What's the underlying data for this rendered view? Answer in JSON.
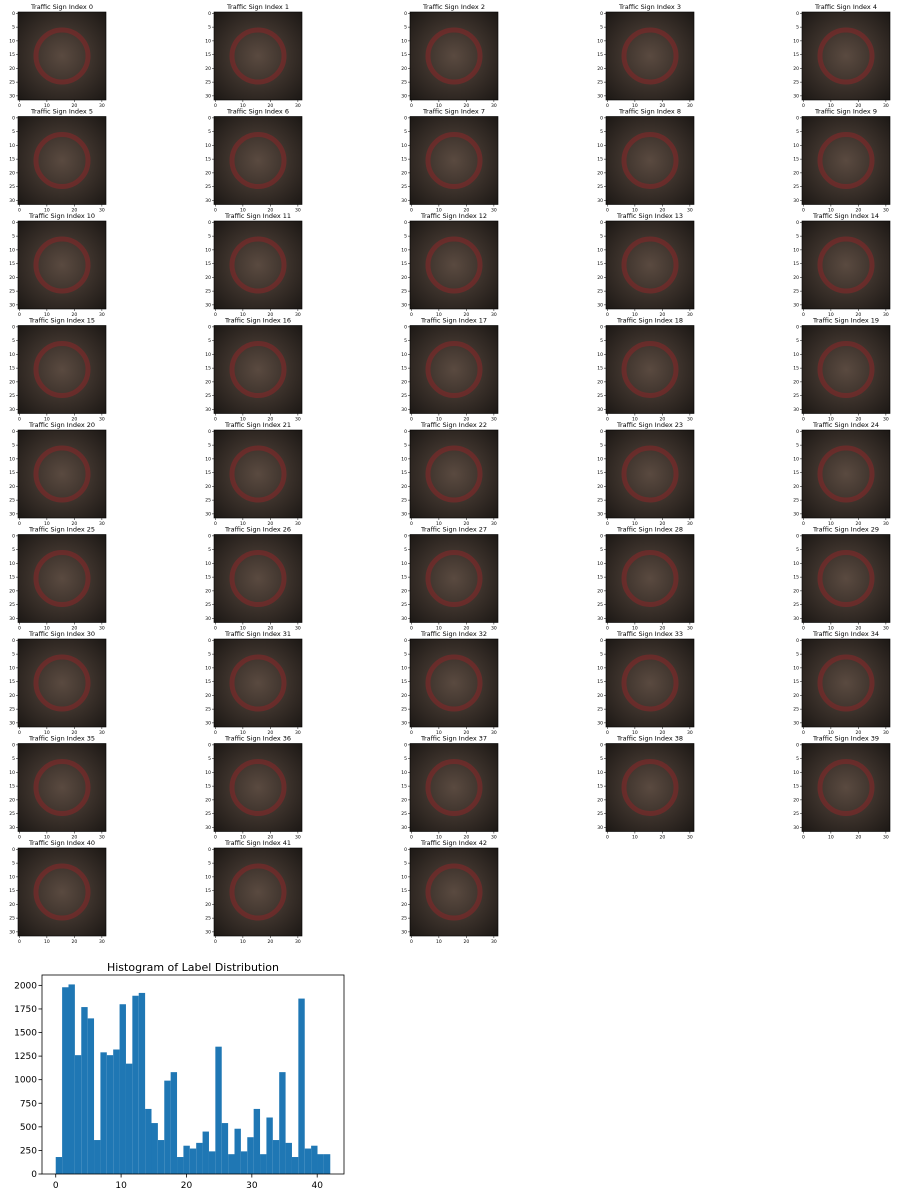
{
  "chart_data": [
    {
      "type": "image",
      "title": "Traffic Sign Index 0",
      "xlim": [
        -0.5,
        31.5
      ],
      "ylim": [
        31.5,
        -0.5
      ],
      "xticks": [
        0,
        10,
        20,
        30
      ],
      "yticks": [
        0,
        5,
        10,
        15,
        20,
        25,
        30
      ]
    },
    {
      "type": "image",
      "title": "Traffic Sign Index 1",
      "xlim": [
        -0.5,
        31.5
      ],
      "ylim": [
        31.5,
        -0.5
      ],
      "xticks": [
        0,
        10,
        20,
        30
      ],
      "yticks": [
        0,
        5,
        10,
        15,
        20,
        25,
        30
      ]
    },
    {
      "type": "image",
      "title": "Traffic Sign Index 2",
      "xlim": [
        -0.5,
        31.5
      ],
      "ylim": [
        31.5,
        -0.5
      ],
      "xticks": [
        0,
        10,
        20,
        30
      ],
      "yticks": [
        0,
        5,
        10,
        15,
        20,
        25,
        30
      ]
    },
    {
      "type": "image",
      "title": "Traffic Sign Index 3",
      "xlim": [
        -0.5,
        31.5
      ],
      "ylim": [
        31.5,
        -0.5
      ],
      "xticks": [
        0,
        10,
        20,
        30
      ],
      "yticks": [
        0,
        5,
        10,
        15,
        20,
        25,
        30
      ]
    },
    {
      "type": "image",
      "title": "Traffic Sign Index 4",
      "xlim": [
        -0.5,
        31.5
      ],
      "ylim": [
        31.5,
        -0.5
      ],
      "xticks": [
        0,
        10,
        20,
        30
      ],
      "yticks": [
        0,
        5,
        10,
        15,
        20,
        25,
        30
      ]
    },
    {
      "type": "image",
      "title": "Traffic Sign Index 5",
      "xlim": [
        -0.5,
        31.5
      ],
      "ylim": [
        31.5,
        -0.5
      ],
      "xticks": [
        0,
        10,
        20,
        30
      ],
      "yticks": [
        0,
        5,
        10,
        15,
        20,
        25,
        30
      ]
    },
    {
      "type": "image",
      "title": "Traffic Sign Index 6",
      "xlim": [
        -0.5,
        31.5
      ],
      "ylim": [
        31.5,
        -0.5
      ],
      "xticks": [
        0,
        10,
        20,
        30
      ],
      "yticks": [
        0,
        5,
        10,
        15,
        20,
        25,
        30
      ]
    },
    {
      "type": "image",
      "title": "Traffic Sign Index 7",
      "xlim": [
        -0.5,
        31.5
      ],
      "ylim": [
        31.5,
        -0.5
      ],
      "xticks": [
        0,
        10,
        20,
        30
      ],
      "yticks": [
        0,
        5,
        10,
        15,
        20,
        25,
        30
      ]
    },
    {
      "type": "image",
      "title": "Traffic Sign Index 8",
      "xlim": [
        -0.5,
        31.5
      ],
      "ylim": [
        31.5,
        -0.5
      ],
      "xticks": [
        0,
        10,
        20,
        30
      ],
      "yticks": [
        0,
        5,
        10,
        15,
        20,
        25,
        30
      ]
    },
    {
      "type": "image",
      "title": "Traffic Sign Index 9",
      "xlim": [
        -0.5,
        31.5
      ],
      "ylim": [
        31.5,
        -0.5
      ],
      "xticks": [
        0,
        10,
        20,
        30
      ],
      "yticks": [
        0,
        5,
        10,
        15,
        20,
        25,
        30
      ]
    },
    {
      "type": "image",
      "title": "Traffic Sign Index 10",
      "xlim": [
        -0.5,
        31.5
      ],
      "ylim": [
        31.5,
        -0.5
      ],
      "xticks": [
        0,
        10,
        20,
        30
      ],
      "yticks": [
        0,
        5,
        10,
        15,
        20,
        25,
        30
      ]
    },
    {
      "type": "image",
      "title": "Traffic Sign Index 11",
      "xlim": [
        -0.5,
        31.5
      ],
      "ylim": [
        31.5,
        -0.5
      ],
      "xticks": [
        0,
        10,
        20,
        30
      ],
      "yticks": [
        0,
        5,
        10,
        15,
        20,
        25,
        30
      ]
    },
    {
      "type": "image",
      "title": "Traffic Sign Index 12",
      "xlim": [
        -0.5,
        31.5
      ],
      "ylim": [
        31.5,
        -0.5
      ],
      "xticks": [
        0,
        10,
        20,
        30
      ],
      "yticks": [
        0,
        5,
        10,
        15,
        20,
        25,
        30
      ]
    },
    {
      "type": "image",
      "title": "Traffic Sign Index 13",
      "xlim": [
        -0.5,
        31.5
      ],
      "ylim": [
        31.5,
        -0.5
      ],
      "xticks": [
        0,
        10,
        20,
        30
      ],
      "yticks": [
        0,
        5,
        10,
        15,
        20,
        25,
        30
      ]
    },
    {
      "type": "image",
      "title": "Traffic Sign Index 14",
      "xlim": [
        -0.5,
        31.5
      ],
      "ylim": [
        31.5,
        -0.5
      ],
      "xticks": [
        0,
        10,
        20,
        30
      ],
      "yticks": [
        0,
        5,
        10,
        15,
        20,
        25,
        30
      ]
    },
    {
      "type": "image",
      "title": "Traffic Sign Index 15",
      "xlim": [
        -0.5,
        31.5
      ],
      "ylim": [
        31.5,
        -0.5
      ],
      "xticks": [
        0,
        10,
        20,
        30
      ],
      "yticks": [
        0,
        5,
        10,
        15,
        20,
        25,
        30
      ]
    },
    {
      "type": "image",
      "title": "Traffic Sign Index 16",
      "xlim": [
        -0.5,
        31.5
      ],
      "ylim": [
        31.5,
        -0.5
      ],
      "xticks": [
        0,
        10,
        20,
        30
      ],
      "yticks": [
        0,
        5,
        10,
        15,
        20,
        25,
        30
      ]
    },
    {
      "type": "image",
      "title": "Traffic Sign Index 17",
      "xlim": [
        -0.5,
        31.5
      ],
      "ylim": [
        31.5,
        -0.5
      ],
      "xticks": [
        0,
        10,
        20,
        30
      ],
      "yticks": [
        0,
        5,
        10,
        15,
        20,
        25,
        30
      ]
    },
    {
      "type": "image",
      "title": "Traffic Sign Index 18",
      "xlim": [
        -0.5,
        31.5
      ],
      "ylim": [
        31.5,
        -0.5
      ],
      "xticks": [
        0,
        10,
        20,
        30
      ],
      "yticks": [
        0,
        5,
        10,
        15,
        20,
        25,
        30
      ]
    },
    {
      "type": "image",
      "title": "Traffic Sign Index 19",
      "xlim": [
        -0.5,
        31.5
      ],
      "ylim": [
        31.5,
        -0.5
      ],
      "xticks": [
        0,
        10,
        20,
        30
      ],
      "yticks": [
        0,
        5,
        10,
        15,
        20,
        25,
        30
      ]
    },
    {
      "type": "image",
      "title": "Traffic Sign Index 20",
      "xlim": [
        -0.5,
        31.5
      ],
      "ylim": [
        31.5,
        -0.5
      ],
      "xticks": [
        0,
        10,
        20,
        30
      ],
      "yticks": [
        0,
        5,
        10,
        15,
        20,
        25,
        30
      ]
    },
    {
      "type": "image",
      "title": "Traffic Sign Index 21",
      "xlim": [
        -0.5,
        31.5
      ],
      "ylim": [
        31.5,
        -0.5
      ],
      "xticks": [
        0,
        10,
        20,
        30
      ],
      "yticks": [
        0,
        5,
        10,
        15,
        20,
        25,
        30
      ]
    },
    {
      "type": "image",
      "title": "Traffic Sign Index 22",
      "xlim": [
        -0.5,
        31.5
      ],
      "ylim": [
        31.5,
        -0.5
      ],
      "xticks": [
        0,
        10,
        20,
        30
      ],
      "yticks": [
        0,
        5,
        10,
        15,
        20,
        25,
        30
      ]
    },
    {
      "type": "image",
      "title": "Traffic Sign Index 23",
      "xlim": [
        -0.5,
        31.5
      ],
      "ylim": [
        31.5,
        -0.5
      ],
      "xticks": [
        0,
        10,
        20,
        30
      ],
      "yticks": [
        0,
        5,
        10,
        15,
        20,
        25,
        30
      ]
    },
    {
      "type": "image",
      "title": "Traffic Sign Index 24",
      "xlim": [
        -0.5,
        31.5
      ],
      "ylim": [
        31.5,
        -0.5
      ],
      "xticks": [
        0,
        10,
        20,
        30
      ],
      "yticks": [
        0,
        5,
        10,
        15,
        20,
        25,
        30
      ]
    },
    {
      "type": "image",
      "title": "Traffic Sign Index 25",
      "xlim": [
        -0.5,
        31.5
      ],
      "ylim": [
        31.5,
        -0.5
      ],
      "xticks": [
        0,
        10,
        20,
        30
      ],
      "yticks": [
        0,
        5,
        10,
        15,
        20,
        25,
        30
      ]
    },
    {
      "type": "image",
      "title": "Traffic Sign Index 26",
      "xlim": [
        -0.5,
        31.5
      ],
      "ylim": [
        31.5,
        -0.5
      ],
      "xticks": [
        0,
        10,
        20,
        30
      ],
      "yticks": [
        0,
        5,
        10,
        15,
        20,
        25,
        30
      ]
    },
    {
      "type": "image",
      "title": "Traffic Sign Index 27",
      "xlim": [
        -0.5,
        31.5
      ],
      "ylim": [
        31.5,
        -0.5
      ],
      "xticks": [
        0,
        10,
        20,
        30
      ],
      "yticks": [
        0,
        5,
        10,
        15,
        20,
        25,
        30
      ]
    },
    {
      "type": "image",
      "title": "Traffic Sign Index 28",
      "xlim": [
        -0.5,
        31.5
      ],
      "ylim": [
        31.5,
        -0.5
      ],
      "xticks": [
        0,
        10,
        20,
        30
      ],
      "yticks": [
        0,
        5,
        10,
        15,
        20,
        25,
        30
      ]
    },
    {
      "type": "image",
      "title": "Traffic Sign Index 29",
      "xlim": [
        -0.5,
        31.5
      ],
      "ylim": [
        31.5,
        -0.5
      ],
      "xticks": [
        0,
        10,
        20,
        30
      ],
      "yticks": [
        0,
        5,
        10,
        15,
        20,
        25,
        30
      ]
    },
    {
      "type": "image",
      "title": "Traffic Sign Index 30",
      "xlim": [
        -0.5,
        31.5
      ],
      "ylim": [
        31.5,
        -0.5
      ],
      "xticks": [
        0,
        10,
        20,
        30
      ],
      "yticks": [
        0,
        5,
        10,
        15,
        20,
        25,
        30
      ]
    },
    {
      "type": "image",
      "title": "Traffic Sign Index 31",
      "xlim": [
        -0.5,
        31.5
      ],
      "ylim": [
        31.5,
        -0.5
      ],
      "xticks": [
        0,
        10,
        20,
        30
      ],
      "yticks": [
        0,
        5,
        10,
        15,
        20,
        25,
        30
      ]
    },
    {
      "type": "image",
      "title": "Traffic Sign Index 32",
      "xlim": [
        -0.5,
        31.5
      ],
      "ylim": [
        31.5,
        -0.5
      ],
      "xticks": [
        0,
        10,
        20,
        30
      ],
      "yticks": [
        0,
        5,
        10,
        15,
        20,
        25,
        30
      ]
    },
    {
      "type": "image",
      "title": "Traffic Sign Index 33",
      "xlim": [
        -0.5,
        31.5
      ],
      "ylim": [
        31.5,
        -0.5
      ],
      "xticks": [
        0,
        10,
        20,
        30
      ],
      "yticks": [
        0,
        5,
        10,
        15,
        20,
        25,
        30
      ]
    },
    {
      "type": "image",
      "title": "Traffic Sign Index 34",
      "xlim": [
        -0.5,
        31.5
      ],
      "ylim": [
        31.5,
        -0.5
      ],
      "xticks": [
        0,
        10,
        20,
        30
      ],
      "yticks": [
        0,
        5,
        10,
        15,
        20,
        25,
        30
      ]
    },
    {
      "type": "image",
      "title": "Traffic Sign Index 35",
      "xlim": [
        -0.5,
        31.5
      ],
      "ylim": [
        31.5,
        -0.5
      ],
      "xticks": [
        0,
        10,
        20,
        30
      ],
      "yticks": [
        0,
        5,
        10,
        15,
        20,
        25,
        30
      ]
    },
    {
      "type": "image",
      "title": "Traffic Sign Index 36",
      "xlim": [
        -0.5,
        31.5
      ],
      "ylim": [
        31.5,
        -0.5
      ],
      "xticks": [
        0,
        10,
        20,
        30
      ],
      "yticks": [
        0,
        5,
        10,
        15,
        20,
        25,
        30
      ]
    },
    {
      "type": "image",
      "title": "Traffic Sign Index 37",
      "xlim": [
        -0.5,
        31.5
      ],
      "ylim": [
        31.5,
        -0.5
      ],
      "xticks": [
        0,
        10,
        20,
        30
      ],
      "yticks": [
        0,
        5,
        10,
        15,
        20,
        25,
        30
      ]
    },
    {
      "type": "image",
      "title": "Traffic Sign Index 38",
      "xlim": [
        -0.5,
        31.5
      ],
      "ylim": [
        31.5,
        -0.5
      ],
      "xticks": [
        0,
        10,
        20,
        30
      ],
      "yticks": [
        0,
        5,
        10,
        15,
        20,
        25,
        30
      ]
    },
    {
      "type": "image",
      "title": "Traffic Sign Index 39",
      "xlim": [
        -0.5,
        31.5
      ],
      "ylim": [
        31.5,
        -0.5
      ],
      "xticks": [
        0,
        10,
        20,
        30
      ],
      "yticks": [
        0,
        5,
        10,
        15,
        20,
        25,
        30
      ]
    },
    {
      "type": "image",
      "title": "Traffic Sign Index 40",
      "xlim": [
        -0.5,
        31.5
      ],
      "ylim": [
        31.5,
        -0.5
      ],
      "xticks": [
        0,
        10,
        20,
        30
      ],
      "yticks": [
        0,
        5,
        10,
        15,
        20,
        25,
        30
      ]
    },
    {
      "type": "image",
      "title": "Traffic Sign Index 41",
      "xlim": [
        -0.5,
        31.5
      ],
      "ylim": [
        31.5,
        -0.5
      ],
      "xticks": [
        0,
        10,
        20,
        30
      ],
      "yticks": [
        0,
        5,
        10,
        15,
        20,
        25,
        30
      ]
    },
    {
      "type": "image",
      "title": "Traffic Sign Index 42",
      "xlim": [
        -0.5,
        31.5
      ],
      "ylim": [
        31.5,
        -0.5
      ],
      "xticks": [
        0,
        10,
        20,
        30
      ],
      "yticks": [
        0,
        5,
        10,
        15,
        20,
        25,
        30
      ]
    },
    {
      "type": "histogram",
      "title": "Histogram of Label Distribution",
      "color": "#1f77b4",
      "bins": [
        0,
        0.977,
        1.953,
        2.93,
        3.907,
        4.884,
        5.86,
        6.837,
        7.814,
        8.791,
        9.767,
        10.744,
        11.721,
        12.698,
        13.674,
        14.651,
        15.628,
        16.605,
        17.581,
        18.558,
        19.535,
        20.512,
        21.488,
        22.465,
        23.442,
        24.419,
        25.395,
        26.372,
        27.349,
        28.326,
        29.302,
        30.279,
        31.256,
        32.233,
        33.209,
        34.186,
        35.163,
        36.14,
        37.116,
        38.093,
        39.07,
        40.047,
        41.023,
        42
      ],
      "values": [
        180,
        1980,
        2010,
        1260,
        1770,
        1650,
        360,
        1290,
        1260,
        1320,
        1800,
        1170,
        1890,
        1920,
        690,
        540,
        360,
        990,
        1080,
        180,
        300,
        270,
        330,
        450,
        240,
        1350,
        540,
        210,
        480,
        240,
        390,
        690,
        210,
        599,
        360,
        1080,
        330,
        180,
        1860,
        270,
        300,
        210,
        210
      ],
      "xlim": [
        -2.1,
        44.1
      ],
      "ylim": [
        0,
        2110
      ],
      "xticks": [
        0,
        10,
        20,
        30,
        40
      ],
      "yticks": [
        0,
        250,
        500,
        750,
        1000,
        1250,
        1500,
        1750,
        2000
      ]
    }
  ]
}
